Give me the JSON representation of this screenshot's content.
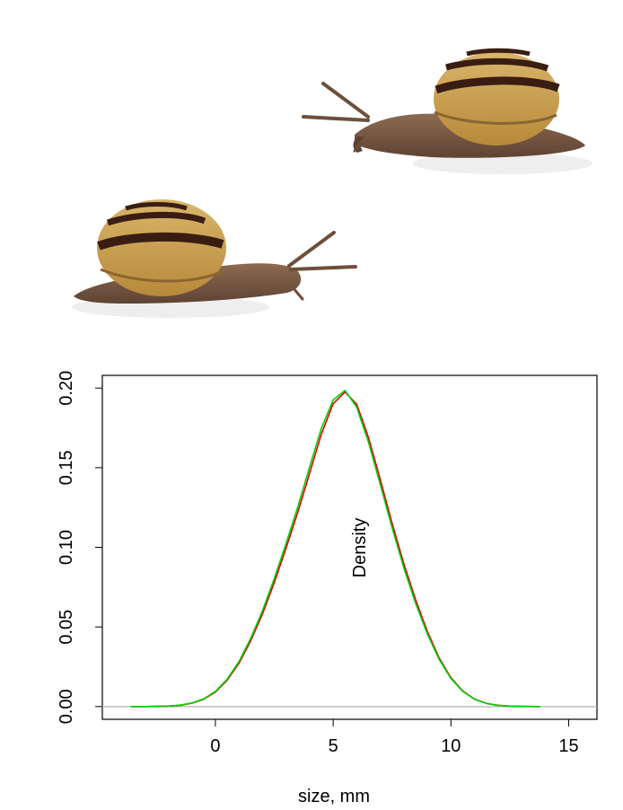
{
  "illustration": {
    "subject": "two garden snails with banded shells",
    "shell_color": "#c9a04a",
    "band_color": "#3a1d12",
    "body_color": "#7a5a44"
  },
  "chart_data": {
    "type": "line",
    "xlabel": "size, mm",
    "ylabel": "Density",
    "xlim": [
      -4.8,
      16.2
    ],
    "ylim": [
      -0.008,
      0.208
    ],
    "x_ticks": [
      0,
      5,
      10,
      15
    ],
    "x_tick_labels": [
      "0",
      "5",
      "10",
      "15"
    ],
    "y_ticks": [
      0.0,
      0.05,
      0.1,
      0.15,
      0.2
    ],
    "y_tick_labels": [
      "0.00",
      "0.05",
      "0.10",
      "0.15",
      "0.20"
    ],
    "baseline": 0,
    "grid": false,
    "legend": "none",
    "series": [
      {
        "color": "#e00000",
        "x": [
          -3.6,
          -3,
          -2.5,
          -2,
          -1.5,
          -1,
          -0.5,
          0,
          0.5,
          1,
          1.5,
          2,
          2.5,
          3,
          3.5,
          4,
          4.5,
          5,
          5.5,
          6,
          6.5,
          7,
          7.5,
          8,
          8.5,
          9,
          9.5,
          10,
          10.5,
          11,
          11.5,
          12,
          12.5,
          13,
          13.5,
          13.8
        ],
        "y": [
          0.0,
          0.0,
          0.0001,
          0.0003,
          0.0008,
          0.0021,
          0.0046,
          0.0091,
          0.0166,
          0.0272,
          0.0413,
          0.0582,
          0.0778,
          0.0996,
          0.1221,
          0.1465,
          0.1712,
          0.1902,
          0.1975,
          0.1898,
          0.1689,
          0.1426,
          0.1152,
          0.0898,
          0.067,
          0.0471,
          0.0305,
          0.0181,
          0.0098,
          0.0047,
          0.002,
          0.0008,
          0.0003,
          0.0001,
          0.0,
          0.0
        ]
      },
      {
        "color": "#00d000",
        "x": [
          -3.6,
          -3,
          -2.5,
          -2,
          -1.5,
          -1,
          -0.5,
          0,
          0.5,
          1,
          1.5,
          2,
          2.5,
          3,
          3.5,
          4,
          4.5,
          5,
          5.5,
          6,
          6.5,
          7,
          7.5,
          8,
          8.5,
          9,
          9.5,
          10,
          10.5,
          11,
          11.5,
          12,
          12.5,
          13,
          13.5,
          13.8
        ],
        "y": [
          0.0,
          0.0,
          0.0001,
          0.0003,
          0.0009,
          0.0022,
          0.0048,
          0.0095,
          0.0172,
          0.0282,
          0.0428,
          0.0602,
          0.0803,
          0.1025,
          0.1255,
          0.1505,
          0.1748,
          0.1925,
          0.1985,
          0.188,
          0.166,
          0.1395,
          0.1125,
          0.0872,
          0.0648,
          0.0455,
          0.0296,
          0.0176,
          0.0096,
          0.0046,
          0.002,
          0.0008,
          0.0003,
          0.0001,
          0.0,
          0.0
        ]
      }
    ]
  }
}
